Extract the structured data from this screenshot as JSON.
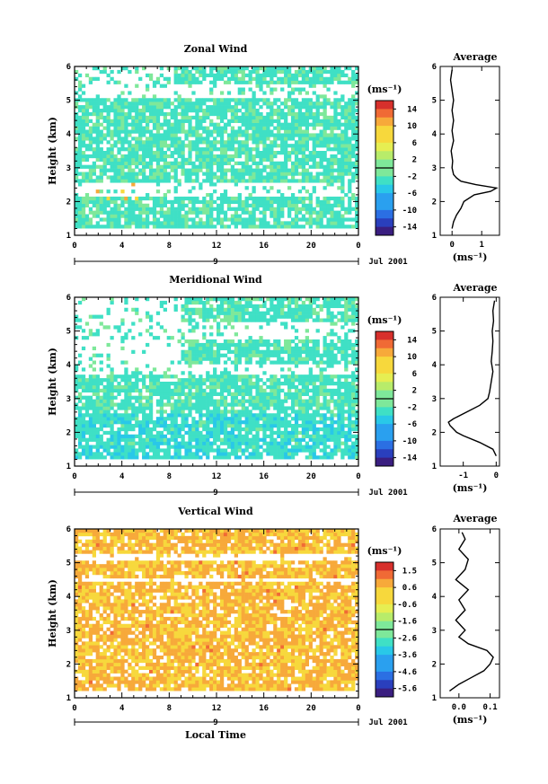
{
  "chart_data": [
    {
      "type": "heatmap",
      "title": "Zonal Wind",
      "ylabel": "Height (km)",
      "xticks": [
        "0",
        "4",
        "8",
        "12",
        "16",
        "20",
        "0"
      ],
      "xlim": [
        0,
        24
      ],
      "ylim": [
        1,
        6
      ],
      "yticks": [
        "1",
        "2",
        "3",
        "4",
        "5",
        "6"
      ],
      "date_day": "9",
      "date_label": "Jul 2001",
      "colorbar": {
        "unit": "(ms⁻¹)",
        "ticks": [
          "14",
          "10",
          "6",
          "2",
          "-2",
          "-6",
          "-10",
          "-14"
        ],
        "range": [
          -16,
          16
        ]
      },
      "dominant_value_ms": -2,
      "gaps_km": [
        [
          5.1,
          5.5
        ],
        [
          2.1,
          2.6
        ]
      ],
      "average_profile": {
        "title": "Average",
        "xlabel": "(ms⁻¹)",
        "xticks": [
          "0",
          "1"
        ],
        "xlim": [
          -0.4,
          1.6
        ],
        "ylim": [
          1,
          6
        ],
        "y": [
          1.2,
          1.4,
          1.6,
          1.8,
          2.0,
          2.2,
          2.3,
          2.4,
          2.5,
          2.6,
          2.7,
          2.8,
          3.0,
          3.2,
          3.5,
          3.8,
          4.1,
          4.4,
          4.7,
          5.0,
          5.3,
          5.6,
          5.9
        ],
        "x": [
          0.0,
          0.05,
          0.15,
          0.3,
          0.4,
          0.75,
          1.3,
          1.5,
          0.8,
          0.3,
          0.15,
          0.05,
          0.0,
          0.02,
          -0.03,
          0.05,
          0.0,
          0.05,
          0.0,
          0.05,
          0.0,
          -0.05,
          0.0
        ]
      }
    },
    {
      "type": "heatmap",
      "title": "Meridional Wind",
      "ylabel": "Height (km)",
      "xticks": [
        "0",
        "4",
        "8",
        "12",
        "16",
        "20",
        "0"
      ],
      "xlim": [
        0,
        24
      ],
      "ylim": [
        1,
        6
      ],
      "yticks": [
        "1",
        "2",
        "3",
        "4",
        "5",
        "6"
      ],
      "date_day": "9",
      "date_label": "Jul 2001",
      "colorbar": {
        "unit": "(ms⁻¹)",
        "ticks": [
          "14",
          "10",
          "6",
          "2",
          "-2",
          "-6",
          "-10",
          "-14"
        ],
        "range": [
          -16,
          16
        ]
      },
      "dominant_value_ms": -2,
      "gaps_km": [
        [
          4.8,
          5.3
        ],
        [
          3.7,
          4.0
        ]
      ],
      "average_profile": {
        "title": "Average",
        "xlabel": "(ms⁻¹)",
        "xticks": [
          "-1",
          "0"
        ],
        "xlim": [
          -1.7,
          0.1
        ],
        "ylim": [
          1,
          6
        ],
        "y": [
          1.3,
          1.5,
          1.7,
          1.9,
          2.0,
          2.2,
          2.3,
          2.4,
          2.6,
          2.8,
          3.0,
          3.2,
          3.5,
          3.8,
          4.1,
          4.4,
          4.7,
          5.0,
          5.3,
          5.6,
          5.9
        ],
        "x": [
          0.0,
          -0.1,
          -0.5,
          -1.0,
          -1.2,
          -1.4,
          -1.45,
          -1.3,
          -0.9,
          -0.5,
          -0.25,
          -0.2,
          -0.15,
          -0.1,
          -0.15,
          -0.12,
          -0.1,
          -0.12,
          -0.08,
          -0.1,
          -0.05
        ]
      }
    },
    {
      "type": "heatmap",
      "title": "Vertical Wind",
      "ylabel": "Height (km)",
      "xlabel": "Local Time",
      "xticks": [
        "0",
        "4",
        "8",
        "12",
        "16",
        "20",
        "0"
      ],
      "xlim": [
        0,
        24
      ],
      "ylim": [
        1,
        6
      ],
      "yticks": [
        "1",
        "2",
        "3",
        "4",
        "5",
        "6"
      ],
      "date_day": "9",
      "date_label": "Jul 2001",
      "colorbar": {
        "unit": "(ms⁻¹)",
        "ticks": [
          "1.5",
          "0.6",
          "-0.6",
          "-1.6",
          "-2.6",
          "-3.6",
          "-4.6",
          "-5.6"
        ],
        "range": [
          -6.0,
          2.0
        ]
      },
      "dominant_value_ms": 0.4,
      "gaps_km": [
        [
          5.1,
          5.3
        ],
        [
          4.4,
          4.5
        ]
      ],
      "average_profile": {
        "title": "Average",
        "xlabel": "(ms⁻¹)",
        "xticks": [
          "0.0",
          "0.1"
        ],
        "xlim": [
          -0.06,
          0.13
        ],
        "ylim": [
          1,
          6
        ],
        "y": [
          1.2,
          1.4,
          1.6,
          1.8,
          2.0,
          2.2,
          2.4,
          2.6,
          2.8,
          3.0,
          3.3,
          3.6,
          3.9,
          4.2,
          4.5,
          4.8,
          5.1,
          5.4,
          5.7,
          5.9
        ],
        "x": [
          -0.03,
          0.0,
          0.04,
          0.08,
          0.1,
          0.11,
          0.09,
          0.03,
          0.0,
          0.02,
          -0.01,
          0.02,
          0.0,
          0.03,
          -0.01,
          0.02,
          0.03,
          0.0,
          0.02,
          0.01
        ]
      }
    }
  ]
}
